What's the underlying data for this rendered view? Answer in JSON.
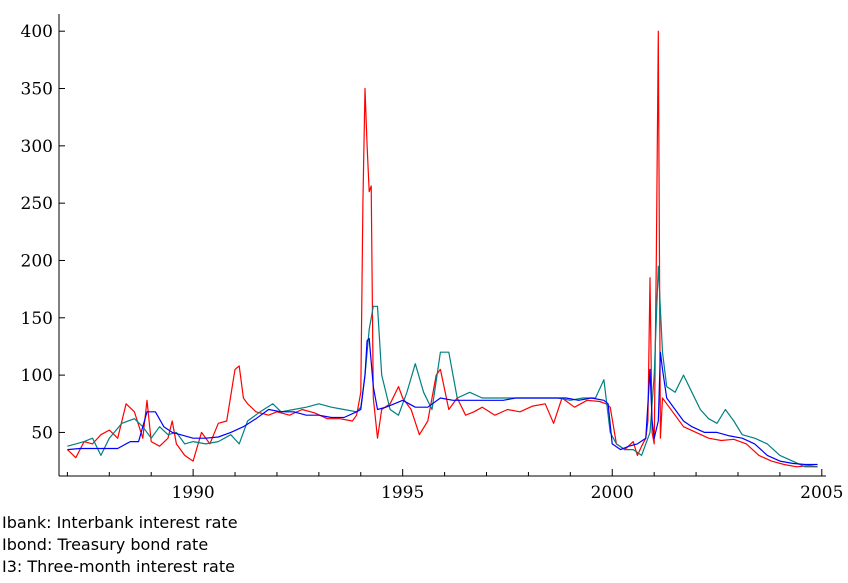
{
  "chart_data": {
    "type": "line",
    "xlim": [
      1986.8,
      2005.1
    ],
    "ylim": [
      12,
      415
    ],
    "x_ticks": [
      1990,
      1995,
      2000,
      2005
    ],
    "y_ticks": [
      50,
      100,
      150,
      200,
      250,
      300,
      350,
      400
    ],
    "grid": false,
    "legend_position": "below",
    "legend": [
      "Ibank: Interbank interest rate",
      "Ibond: Treasury bond rate",
      "I3: Three-month interest rate"
    ],
    "series": [
      {
        "color": "#ff0000",
        "x": [
          1987.0,
          1987.2,
          1987.4,
          1987.6,
          1987.8,
          1988.0,
          1988.2,
          1988.4,
          1988.6,
          1988.8,
          1988.9,
          1989.0,
          1989.2,
          1989.4,
          1989.5,
          1989.6,
          1989.8,
          1990.0,
          1990.2,
          1990.4,
          1990.6,
          1990.8,
          1991.0,
          1991.1,
          1991.2,
          1991.3,
          1991.5,
          1991.8,
          1992.0,
          1992.3,
          1992.6,
          1992.9,
          1993.2,
          1993.5,
          1993.8,
          1993.9,
          1994.0,
          1994.05,
          1994.1,
          1994.15,
          1994.2,
          1994.25,
          1994.3,
          1994.4,
          1994.5,
          1994.7,
          1994.9,
          1995.0,
          1995.2,
          1995.4,
          1995.6,
          1995.8,
          1995.9,
          1996.1,
          1996.3,
          1996.5,
          1996.7,
          1996.9,
          1997.2,
          1997.5,
          1997.8,
          1998.1,
          1998.4,
          1998.6,
          1998.8,
          1999.1,
          1999.4,
          1999.7,
          1999.85,
          1999.95,
          2000.1,
          2000.3,
          2000.5,
          2000.6,
          2000.7,
          2000.8,
          2000.85,
          2000.9,
          2000.95,
          2001.0,
          2001.05,
          2001.1,
          2001.15,
          2001.2,
          2001.3,
          2001.5,
          2001.7,
          2002.0,
          2002.3,
          2002.6,
          2002.9,
          2003.2,
          2003.5,
          2003.8,
          2004.1,
          2004.4,
          2004.7,
          2004.9
        ],
        "y": [
          35,
          28,
          42,
          40,
          48,
          52,
          45,
          75,
          68,
          45,
          78,
          42,
          38,
          45,
          60,
          40,
          30,
          25,
          50,
          40,
          58,
          60,
          105,
          108,
          80,
          75,
          68,
          65,
          68,
          65,
          70,
          67,
          62,
          62,
          60,
          65,
          85,
          250,
          350,
          300,
          260,
          265,
          80,
          45,
          70,
          75,
          90,
          80,
          70,
          48,
          60,
          100,
          105,
          70,
          80,
          65,
          68,
          72,
          65,
          70,
          68,
          73,
          75,
          58,
          80,
          72,
          78,
          77,
          75,
          72,
          40,
          35,
          42,
          30,
          38,
          45,
          60,
          185,
          50,
          40,
          200,
          400,
          45,
          80,
          75,
          65,
          55,
          50,
          45,
          43,
          44,
          40,
          30,
          25,
          22,
          20,
          21,
          20
        ]
      },
      {
        "color": "#008080",
        "x": [
          1987.0,
          1987.2,
          1987.4,
          1987.6,
          1987.8,
          1988.0,
          1988.3,
          1988.6,
          1988.8,
          1989.0,
          1989.2,
          1989.4,
          1989.6,
          1989.8,
          1990.0,
          1990.3,
          1990.6,
          1990.9,
          1991.1,
          1991.3,
          1991.6,
          1991.9,
          1992.1,
          1992.4,
          1992.7,
          1993.0,
          1993.3,
          1993.6,
          1993.9,
          1994.0,
          1994.1,
          1994.2,
          1994.3,
          1994.4,
          1994.5,
          1994.7,
          1994.9,
          1995.1,
          1995.3,
          1995.5,
          1995.7,
          1995.9,
          1996.1,
          1996.3,
          1996.6,
          1996.9,
          1997.2,
          1997.5,
          1997.8,
          1998.1,
          1998.4,
          1998.7,
          1999.0,
          1999.3,
          1999.6,
          1999.8,
          1999.95,
          2000.1,
          2000.3,
          2000.5,
          2000.7,
          2000.9,
          2001.0,
          2001.1,
          2001.2,
          2001.3,
          2001.5,
          2001.7,
          2001.9,
          2002.1,
          2002.3,
          2002.5,
          2002.7,
          2002.9,
          2003.1,
          2003.4,
          2003.7,
          2004.0,
          2004.3,
          2004.6,
          2004.9
        ],
        "y": [
          38,
          40,
          42,
          45,
          30,
          45,
          58,
          62,
          55,
          45,
          55,
          48,
          50,
          40,
          42,
          40,
          42,
          48,
          40,
          60,
          68,
          75,
          68,
          70,
          72,
          75,
          72,
          70,
          68,
          72,
          100,
          140,
          160,
          160,
          100,
          70,
          65,
          85,
          110,
          85,
          70,
          120,
          120,
          80,
          85,
          80,
          80,
          80,
          80,
          80,
          80,
          80,
          78,
          80,
          80,
          96,
          50,
          40,
          35,
          35,
          30,
          50,
          100,
          195,
          120,
          90,
          85,
          100,
          85,
          70,
          62,
          58,
          70,
          60,
          48,
          45,
          40,
          30,
          25,
          20,
          20
        ]
      },
      {
        "color": "#0000ff",
        "x": [
          1987.0,
          1987.3,
          1987.6,
          1987.9,
          1988.2,
          1988.5,
          1988.7,
          1988.9,
          1989.1,
          1989.3,
          1989.5,
          1989.7,
          1990.0,
          1990.3,
          1990.6,
          1990.9,
          1991.2,
          1991.5,
          1991.8,
          1992.1,
          1992.4,
          1992.7,
          1993.0,
          1993.3,
          1993.6,
          1993.9,
          1994.0,
          1994.1,
          1994.15,
          1994.2,
          1994.3,
          1994.4,
          1994.6,
          1994.8,
          1995.0,
          1995.3,
          1995.6,
          1995.9,
          1996.2,
          1996.5,
          1996.8,
          1997.1,
          1997.4,
          1997.7,
          1998.0,
          1998.3,
          1998.6,
          1998.9,
          1999.2,
          1999.5,
          1999.8,
          1999.9,
          2000.0,
          2000.2,
          2000.4,
          2000.6,
          2000.8,
          2000.9,
          2000.95,
          2001.0,
          2001.1,
          2001.15,
          2001.2,
          2001.3,
          2001.5,
          2001.7,
          2001.9,
          2002.2,
          2002.5,
          2002.8,
          2003.1,
          2003.4,
          2003.7,
          2004.0,
          2004.3,
          2004.6,
          2004.9
        ],
        "y": [
          35,
          36,
          36,
          36,
          36,
          42,
          42,
          68,
          68,
          55,
          50,
          48,
          45,
          45,
          46,
          50,
          55,
          62,
          70,
          68,
          68,
          65,
          65,
          63,
          63,
          68,
          70,
          100,
          130,
          132,
          90,
          70,
          72,
          75,
          78,
          72,
          72,
          80,
          78,
          78,
          78,
          78,
          78,
          80,
          80,
          80,
          80,
          80,
          78,
          80,
          78,
          75,
          40,
          35,
          38,
          40,
          45,
          105,
          60,
          45,
          60,
          120,
          105,
          80,
          70,
          60,
          55,
          50,
          50,
          47,
          45,
          40,
          30,
          25,
          23,
          22,
          22
        ]
      }
    ]
  }
}
